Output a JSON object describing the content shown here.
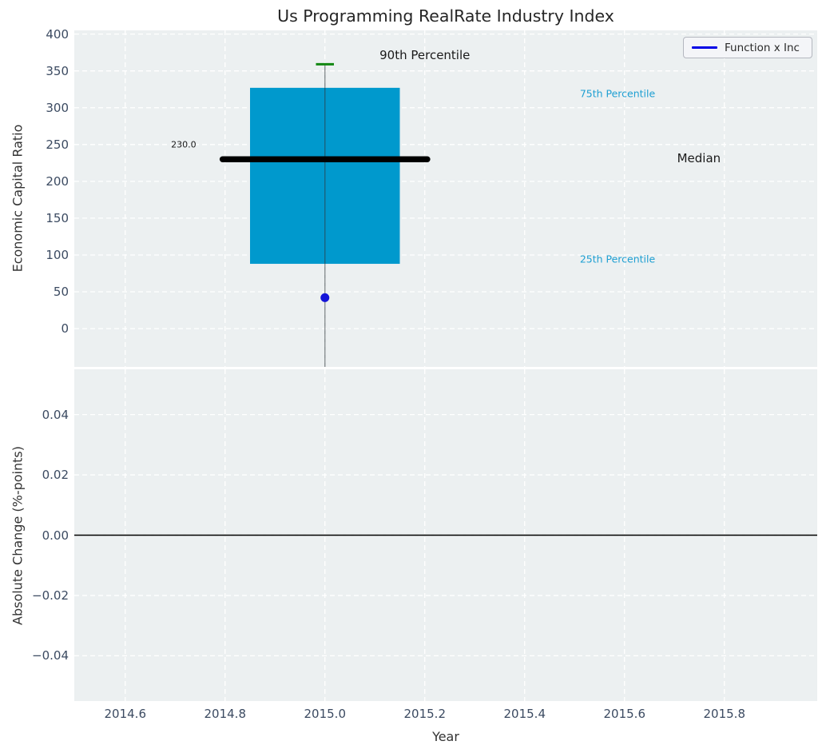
{
  "figure": {
    "title": "Us Programming RealRate Industry Index"
  },
  "legend": {
    "label": "Function x Inc"
  },
  "colors": {
    "axes_bg": "#ecf0f1",
    "grid": "#ffffff",
    "tick_label": "#3b4a61",
    "box_fill": "#0099cd",
    "median_line": "#000000",
    "whisker": "rgba(45,55,60,0.55)",
    "cap_90th": "#128712",
    "value_dot": "#1414d8",
    "legend_line": "#0000e6",
    "annotation_cyan": "#1e9fd2",
    "text_dark": "#1a1a1a",
    "zero_line": "#000000"
  },
  "chart_data": [
    {
      "type": "boxplot",
      "title": "Us Programming RealRate Industry Index",
      "ylabel": "Economic Capital Ratio",
      "xlim": [
        2014.498,
        2015.986
      ],
      "ylim": [
        -52,
        405
      ],
      "yticks": [
        400,
        350,
        300,
        250,
        200,
        150,
        100,
        50,
        0
      ],
      "xticks": [
        2014.6,
        2014.8,
        2015.0,
        2015.2,
        2015.4,
        2015.6,
        2015.8
      ],
      "grid": true,
      "legend_entries": [
        "Function x Inc"
      ],
      "legend_position": "upper right",
      "box": {
        "x": 2015.0,
        "p90": 359,
        "q75": 327,
        "median": 230,
        "median_label": "230.0",
        "q25": 88,
        "company_value": 42,
        "box_halfwidth": 0.15,
        "median_halfwidth": 0.205,
        "cap_halfwidth": 0.018
      },
      "annotations": [
        {
          "text": "90th Percentile",
          "x": 2015.2,
          "y": 371,
          "color": "dark",
          "size": 15
        },
        {
          "text": "230.0",
          "x": 2014.717,
          "y": 250,
          "color": "dark",
          "size": 11
        },
        {
          "text": "75th Percentile",
          "x": 2015.586,
          "y": 319,
          "color": "cyan",
          "size": 12.5
        },
        {
          "text": "Median",
          "x": 2015.749,
          "y": 231,
          "color": "dark",
          "size": 15
        },
        {
          "text": "25th Percentile",
          "x": 2015.586,
          "y": 95,
          "color": "cyan",
          "size": 12.5
        }
      ]
    },
    {
      "type": "line",
      "ylabel": "Absolute Change (%-points)",
      "xlabel": "Year",
      "xlim": [
        2014.498,
        2015.986
      ],
      "ylim": [
        -0.055,
        0.055
      ],
      "yticks": [
        0.04,
        0.02,
        0.0,
        -0.02,
        -0.04
      ],
      "xticks": [
        2014.6,
        2014.8,
        2015.0,
        2015.2,
        2015.4,
        2015.6,
        2015.8
      ],
      "grid": true,
      "zero_line_y": 0.0,
      "series": []
    }
  ]
}
